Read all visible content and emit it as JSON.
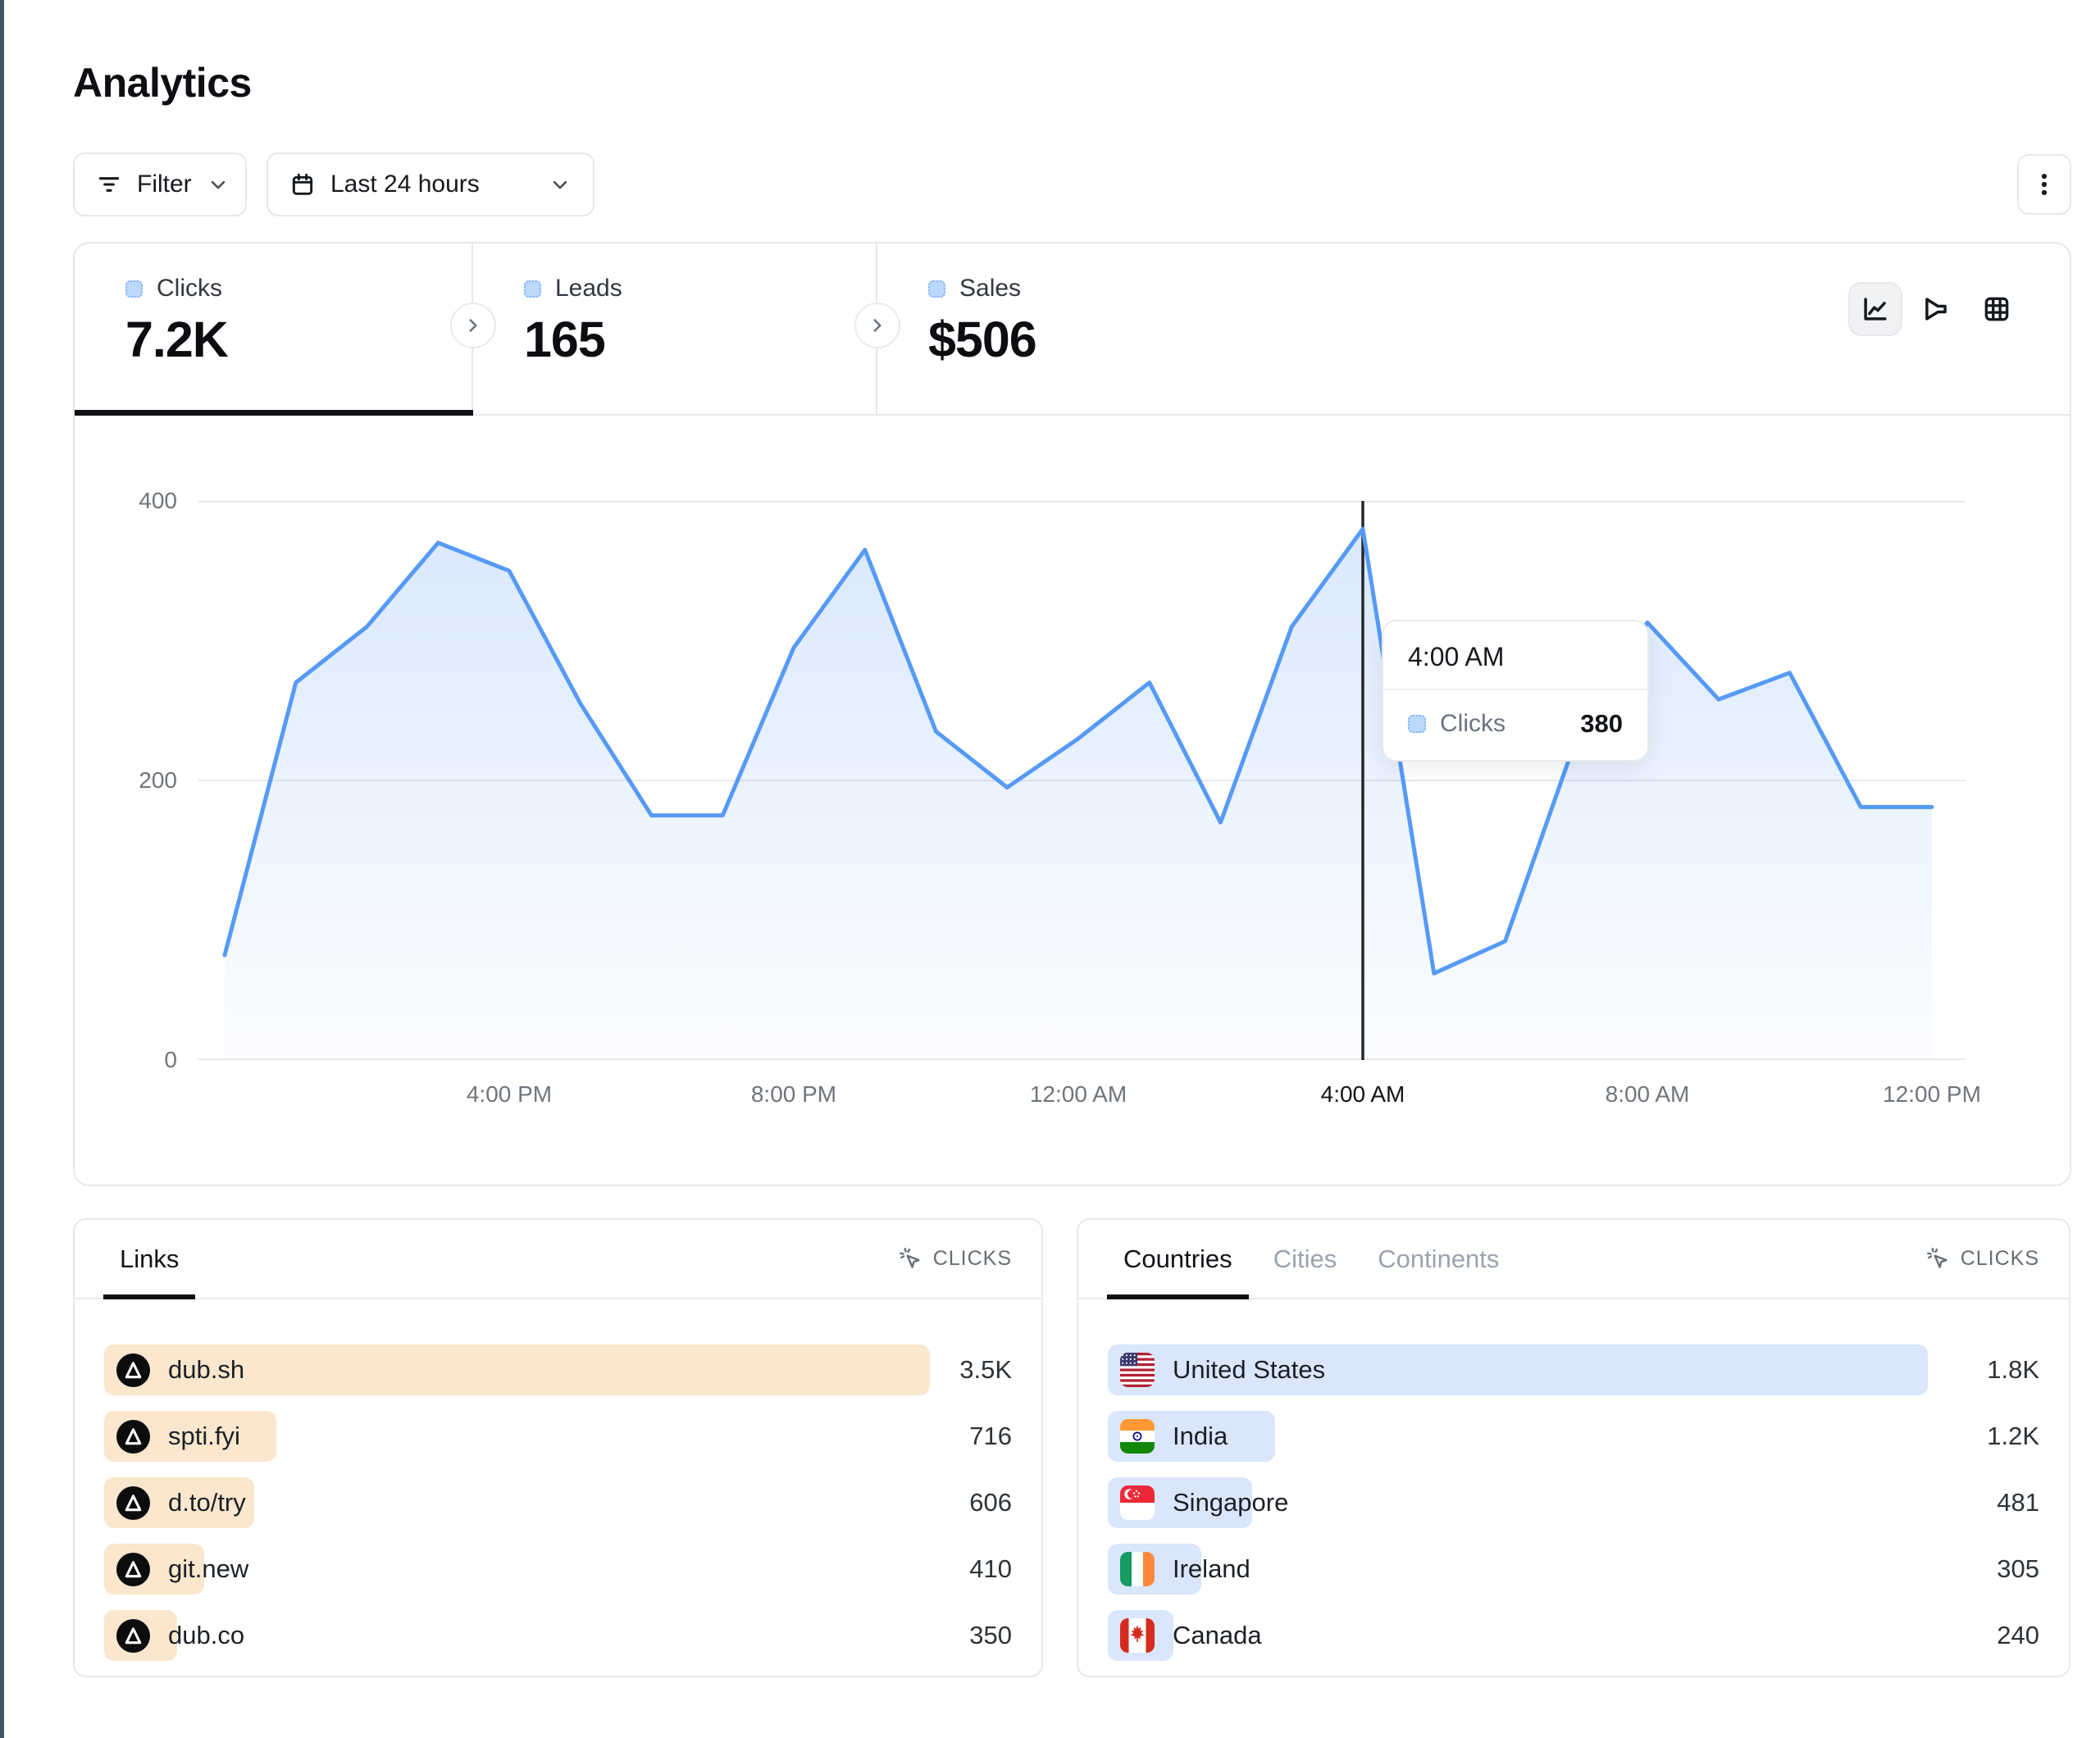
{
  "page": {
    "title": "Analytics",
    "edge_color": "#40565e"
  },
  "toolbar": {
    "filter": {
      "label": "Filter",
      "icon": "filter-lines-icon"
    },
    "date_range": {
      "label": "Last 24 hours",
      "icon": "calendar-icon"
    },
    "menu": {
      "icon": "kebab-menu-icon"
    }
  },
  "stats": {
    "tabs": [
      {
        "label": "Clicks",
        "value": "7.2K",
        "active": true
      },
      {
        "label": "Leads",
        "value": "165",
        "active": false
      },
      {
        "label": "Sales",
        "value": "$506",
        "active": false
      }
    ]
  },
  "chart_views": {
    "options": [
      "line-chart",
      "funnel",
      "table"
    ],
    "active": "line-chart"
  },
  "chart_data": {
    "type": "area",
    "title": "Clicks over the last 24 hours",
    "x": [
      "12:00 PM",
      "1:00 PM",
      "2:00 PM",
      "3:00 PM",
      "4:00 PM",
      "5:00 PM",
      "6:00 PM",
      "7:00 PM",
      "8:00 PM",
      "9:00 PM",
      "10:00 PM",
      "11:00 PM",
      "12:00 AM",
      "1:00 AM",
      "2:00 AM",
      "3:00 AM",
      "4:00 AM",
      "5:00 AM",
      "6:00 AM",
      "7:00 AM",
      "8:00 AM",
      "9:00 AM",
      "10:00 AM",
      "11:00 AM",
      "12:00 PM"
    ],
    "series": [
      {
        "name": "Clicks",
        "values": [
          75,
          270,
          310,
          370,
          350,
          255,
          175,
          175,
          295,
          365,
          235,
          195,
          230,
          270,
          170,
          310,
          380,
          62,
          85,
          230,
          313,
          258,
          277,
          181,
          181
        ]
      }
    ],
    "ylim": [
      0,
      400
    ],
    "yticks": [
      0,
      200,
      400
    ],
    "x_tick_indices": [
      4,
      8,
      12,
      16,
      20,
      24
    ],
    "x_tick_labels": [
      "4:00 PM",
      "8:00 PM",
      "12:00 AM",
      "4:00 AM",
      "8:00 AM",
      "12:00 PM"
    ],
    "highlighted_x": "4:00 AM",
    "grid": "horizontal",
    "legend": "none",
    "line_color": "#569af6",
    "crosshair_color": "#23272d"
  },
  "tooltip": {
    "title": "4:00 AM",
    "series": "Clicks",
    "value": "380"
  },
  "links_panel": {
    "tab": "Links",
    "metric": "CLICKS",
    "bar_color": "#fbe7cd",
    "rows": [
      {
        "label": "dub.sh",
        "value": "3.5K",
        "bar_pct": 91
      },
      {
        "label": "spti.fyi",
        "value": "716",
        "bar_pct": 19
      },
      {
        "label": "d.to/try",
        "value": "606",
        "bar_pct": 16.5
      },
      {
        "label": "git.new",
        "value": "410",
        "bar_pct": 11
      },
      {
        "label": "dub.co",
        "value": "350",
        "bar_pct": 8
      }
    ]
  },
  "countries_panel": {
    "tabs": [
      "Countries",
      "Cities",
      "Continents"
    ],
    "active_tab": "Countries",
    "metric": "CLICKS",
    "bar_color": "#d9e6fc",
    "rows": [
      {
        "label": "United States",
        "flag": "us",
        "value": "1.8K",
        "bar_pct": 88
      },
      {
        "label": "India",
        "flag": "in",
        "value": "1.2K",
        "bar_pct": 18
      },
      {
        "label": "Singapore",
        "flag": "sg",
        "value": "481",
        "bar_pct": 15.5
      },
      {
        "label": "Ireland",
        "flag": "ie",
        "value": "305",
        "bar_pct": 10
      },
      {
        "label": "Canada",
        "flag": "ca",
        "value": "240",
        "bar_pct": 7
      }
    ]
  }
}
